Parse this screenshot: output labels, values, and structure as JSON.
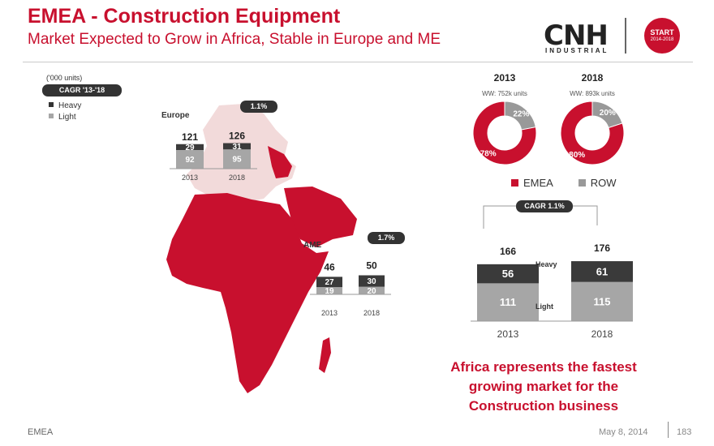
{
  "header": {
    "title": "EMEA - Construction Equipment",
    "subtitle": "Market Expected to Grow in Africa, Stable in Europe and ME",
    "logo_main": "CNH",
    "logo_sub": "INDUSTRIAL",
    "badge_line1": "START",
    "badge_line2": "2014-2018"
  },
  "left": {
    "units": "('000 units)",
    "cagr_label": "CAGR '13-'18",
    "legend": [
      {
        "label": "Heavy",
        "color": "#333333"
      },
      {
        "label": "Light",
        "color": "#a6a6a6"
      }
    ]
  },
  "colors": {
    "brand": "#c8102e",
    "heavy": "#3a3a3a",
    "light": "#a6a6a6",
    "map_fill": "#c8102e",
    "europe_fill": "#f2dada"
  },
  "europe": {
    "label": "Europe",
    "cagr": "1.1%"
  },
  "ame": {
    "label": "AME",
    "cagr": "1.7%"
  },
  "pies": {
    "legend": [
      {
        "label": "EMEA",
        "color": "#c8102e"
      },
      {
        "label": "ROW",
        "color": "#999999"
      }
    ]
  },
  "total": {
    "cagr": "CAGR  1.1%",
    "heavy_label": "Heavy",
    "light_label": "Light"
  },
  "note": {
    "line1": "Africa represents the fastest",
    "line2": "growing market for the",
    "line3": "Construction business"
  },
  "footer": {
    "left": "EMEA",
    "date": "May 8, 2014",
    "page": "183"
  },
  "chart_data": [
    {
      "type": "bar",
      "name_label": "Europe",
      "categories": [
        "2013",
        "2018"
      ],
      "series": [
        {
          "name": "Light",
          "values": [
            92,
            95
          ]
        },
        {
          "name": "Heavy",
          "values": [
            29,
            31
          ]
        }
      ],
      "totals": [
        "121",
        "126"
      ],
      "cagr": "1.1%"
    },
    {
      "type": "bar",
      "name_label": "AME",
      "categories": [
        "2013",
        "2018"
      ],
      "series": [
        {
          "name": "Light",
          "values": [
            19,
            20
          ]
        },
        {
          "name": "Heavy",
          "values": [
            27,
            30
          ]
        }
      ],
      "totals": [
        "46",
        "50"
      ],
      "cagr": "1.7%"
    },
    {
      "type": "pie",
      "year": "2013",
      "subtitle": "WW: 752k units",
      "slices": [
        {
          "label": "EMEA",
          "value": 78,
          "text": "78%"
        },
        {
          "label": "ROW",
          "value": 22,
          "text": "22%"
        }
      ]
    },
    {
      "type": "pie",
      "year": "2018",
      "subtitle": "WW: 893k units",
      "slices": [
        {
          "label": "EMEA",
          "value": 80,
          "text": "80%"
        },
        {
          "label": "ROW",
          "value": 20,
          "text": "20%"
        }
      ]
    },
    {
      "type": "bar",
      "categories": [
        "2013",
        "2018"
      ],
      "series": [
        {
          "name": "Light",
          "values": [
            111,
            115
          ]
        },
        {
          "name": "Heavy",
          "values": [
            56,
            61
          ]
        }
      ],
      "totals": [
        "166",
        "176"
      ],
      "cagr": "CAGR  1.1%"
    }
  ]
}
